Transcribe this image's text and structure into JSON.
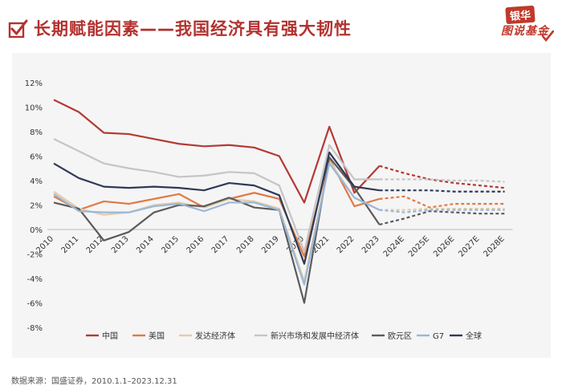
{
  "header": {
    "title": "长期赋能因素——我国经济具有强大韧性",
    "logo_top": "银华",
    "logo_bottom": "图说基金"
  },
  "footer": {
    "source": "数据来源：国盛证券，2010.1.1–2023.12.31"
  },
  "chart_data": {
    "type": "line",
    "categories": [
      "2010",
      "2011",
      "2012",
      "2013",
      "2014",
      "2015",
      "2016",
      "2017",
      "2018",
      "2019",
      "2020",
      "2021",
      "2022",
      "2023",
      "2024E",
      "2025E",
      "2026E",
      "2027E",
      "2028E"
    ],
    "y_ticks": [
      "12%",
      "10%",
      "8%",
      "6%",
      "4%",
      "2%",
      "0%",
      "-2%",
      "-4%",
      "-6%",
      "-8%"
    ],
    "ylim": [
      -8,
      12
    ],
    "forecast_start_index": 13,
    "grid": false,
    "legend_position": "bottom",
    "series": [
      {
        "name": "中国",
        "color": "#b33a33",
        "values": [
          10.6,
          9.6,
          7.9,
          7.8,
          7.4,
          7.0,
          6.8,
          6.9,
          6.7,
          6.0,
          2.2,
          8.4,
          3.0,
          5.2,
          4.6,
          4.1,
          3.8,
          3.6,
          3.4
        ]
      },
      {
        "name": "美国",
        "color": "#e07b45",
        "values": [
          2.7,
          1.6,
          2.3,
          2.1,
          2.5,
          2.9,
          1.8,
          2.5,
          3.0,
          2.5,
          -2.2,
          5.8,
          1.9,
          2.5,
          2.7,
          1.8,
          2.1,
          2.1,
          2.1
        ]
      },
      {
        "name": "发达经济体",
        "color": "#e3cca6",
        "values": [
          3.1,
          1.7,
          1.2,
          1.4,
          2.0,
          2.2,
          1.8,
          2.5,
          2.3,
          1.7,
          -4.2,
          5.6,
          2.6,
          1.6,
          1.6,
          1.7,
          1.7,
          1.7,
          1.7
        ]
      },
      {
        "name": "新兴市场和发展中经济体",
        "color": "#c5c5c5",
        "values": [
          7.4,
          6.4,
          5.4,
          5.0,
          4.7,
          4.3,
          4.4,
          4.7,
          4.6,
          3.6,
          -1.8,
          6.9,
          4.1,
          4.1,
          4.1,
          4.1,
          4.0,
          4.0,
          3.9
        ]
      },
      {
        "name": "欧元区",
        "color": "#5b5b5b",
        "values": [
          2.2,
          1.7,
          -0.9,
          -0.2,
          1.4,
          2.0,
          1.9,
          2.6,
          1.8,
          1.6,
          -6.0,
          5.9,
          3.4,
          0.4,
          0.9,
          1.5,
          1.4,
          1.3,
          1.3
        ]
      },
      {
        "name": "G7",
        "color": "#9bb7d9",
        "values": [
          2.9,
          1.5,
          1.4,
          1.4,
          1.9,
          2.1,
          1.5,
          2.2,
          2.2,
          1.6,
          -4.5,
          5.4,
          2.6,
          1.6,
          1.4,
          1.6,
          1.6,
          1.6,
          1.6
        ]
      },
      {
        "name": "全球",
        "color": "#2f3a56",
        "values": [
          5.4,
          4.2,
          3.5,
          3.4,
          3.5,
          3.4,
          3.2,
          3.8,
          3.6,
          2.8,
          -2.8,
          6.3,
          3.5,
          3.2,
          3.2,
          3.2,
          3.1,
          3.1,
          3.1
        ]
      }
    ]
  }
}
